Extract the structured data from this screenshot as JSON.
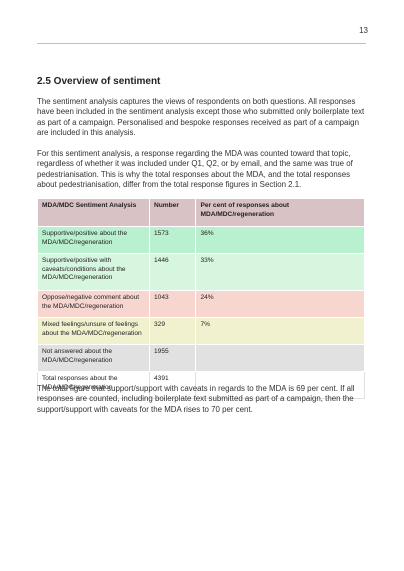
{
  "header": {
    "page_number": "13"
  },
  "section": {
    "heading": "2.5 Overview of sentiment"
  },
  "paragraphs": {
    "p1": "The sentiment analysis captures the views of respondents on both questions. All responses have been included in the sentiment analysis except those who submitted only boilerplate text as part of a campaign. Personalised and bespoke responses received as part of a campaign are included in this analysis.",
    "p2": "For this sentiment analysis, a response regarding the MDA was counted toward that topic, regardless of whether it was included under Q1, Q2, or by email, and the same was true of pedestrianisation. This is why the total responses about the MDA, and the total responses about pedestrianisation, differ from the total response figures in Section 2.1.",
    "p3": "The total figure that support/support with caveats in regards to the MDA is 69 per cent. If all responses are counted, including boilerplate text submitted as part of a campaign, then the support/support with caveats for the MDA rises to 70 per cent."
  },
  "table": {
    "headers": [
      "MDA/MDC Sentiment Analysis",
      "Number",
      "Per cent of responses about MDA/MDC/regeneration"
    ],
    "rows": [
      {
        "label": "Supportive/positive about the MDA/MDC/regeneration",
        "number": "1573",
        "percent": "36%"
      },
      {
        "label": "Supportive/positive with caveats/conditions about the MDA/MDC/regeneration",
        "number": "1446",
        "percent": "33%"
      },
      {
        "label": "Oppose/negative comment about the MDA/MDC/regeneration",
        "number": "1043",
        "percent": "24%"
      },
      {
        "label": "Mixed feelings/unsure of feelings about the MDA/MDC/regeneration",
        "number": "329",
        "percent": "7%"
      },
      {
        "label": "Not answered about the MDA/MDC/regeneration",
        "number": "1955",
        "percent": ""
      },
      {
        "label": "Total responses about the MDA/MDC/regeneration",
        "number": "4391",
        "percent": ""
      }
    ]
  }
}
